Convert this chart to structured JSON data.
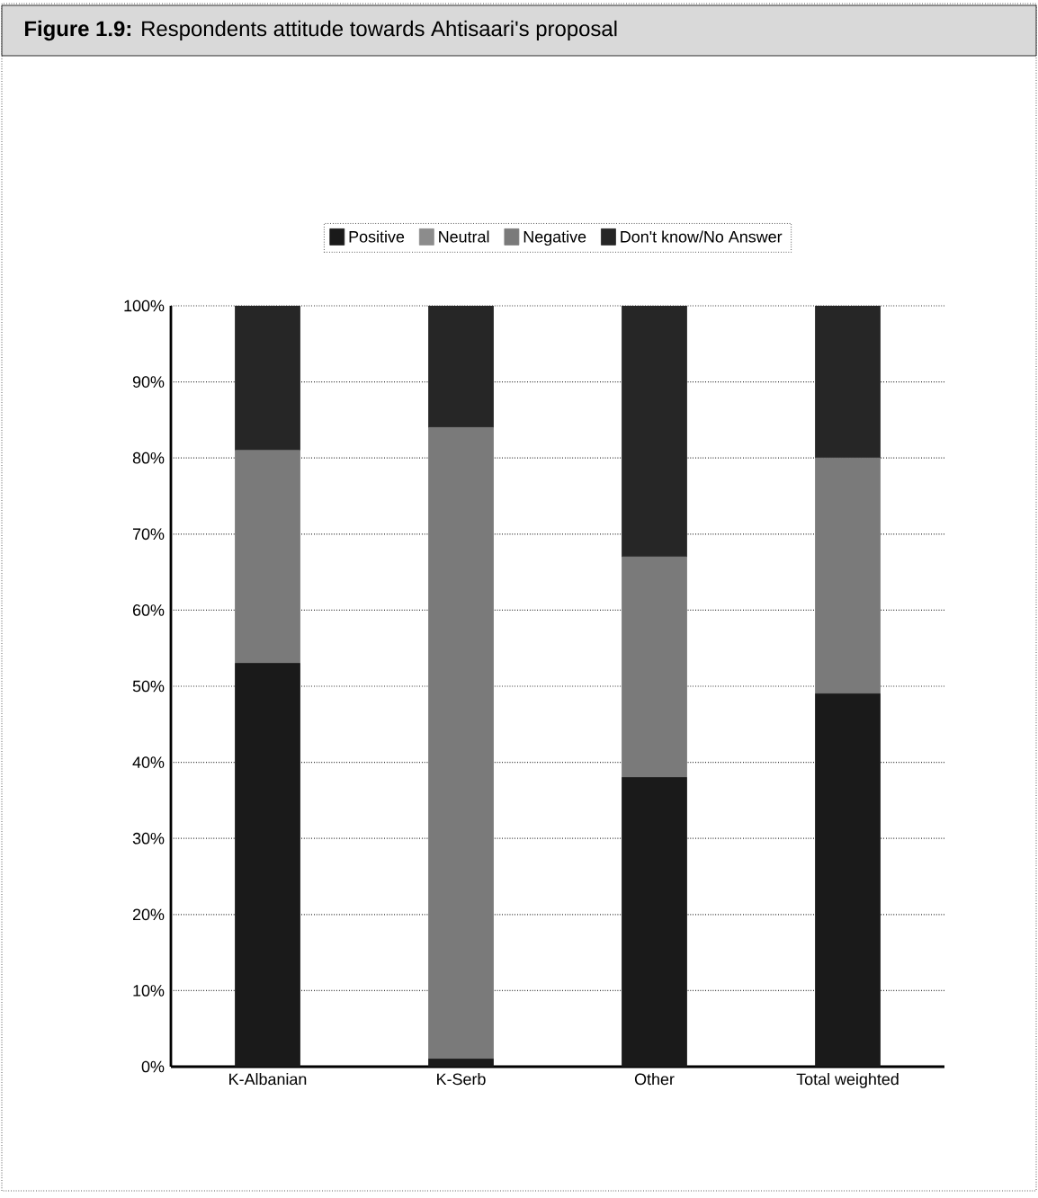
{
  "chart_data": {
    "type": "bar",
    "stacked": true,
    "title": "**Figure 1.9:** Respondents attitude towards Ahtisaari's proposal",
    "categories": [
      "K-Albanian",
      "K-Serb",
      "Other",
      "Total weighted"
    ],
    "series": [
      {
        "name": "Positive",
        "color": "#1a1a1a",
        "values": [
          53,
          1,
          38,
          49
        ]
      },
      {
        "name": "Neutral",
        "color": "#8c8c8c",
        "values": [
          0,
          0,
          0,
          0
        ]
      },
      {
        "name": "Negative",
        "color": "#7a7a7a",
        "values": [
          28,
          83,
          29,
          31
        ]
      },
      {
        "name": "Don't know/No Answer",
        "color": "#262626",
        "values": [
          19,
          16,
          33,
          20
        ]
      }
    ],
    "ylim": [
      0,
      100
    ],
    "yticks": [
      {
        "value": 0,
        "label": "0%"
      },
      {
        "value": 10,
        "label": "10%"
      },
      {
        "value": 20,
        "label": "20%"
      },
      {
        "value": 30,
        "label": "30%"
      },
      {
        "value": 40,
        "label": "40%"
      },
      {
        "value": 50,
        "label": "50%"
      },
      {
        "value": 60,
        "label": "60%"
      },
      {
        "value": 70,
        "label": "70%"
      },
      {
        "value": 80,
        "label": "80%"
      },
      {
        "value": 90,
        "label": "90%"
      },
      {
        "value": 100,
        "label": "100%"
      }
    ],
    "grid": "y",
    "legend": "top"
  }
}
